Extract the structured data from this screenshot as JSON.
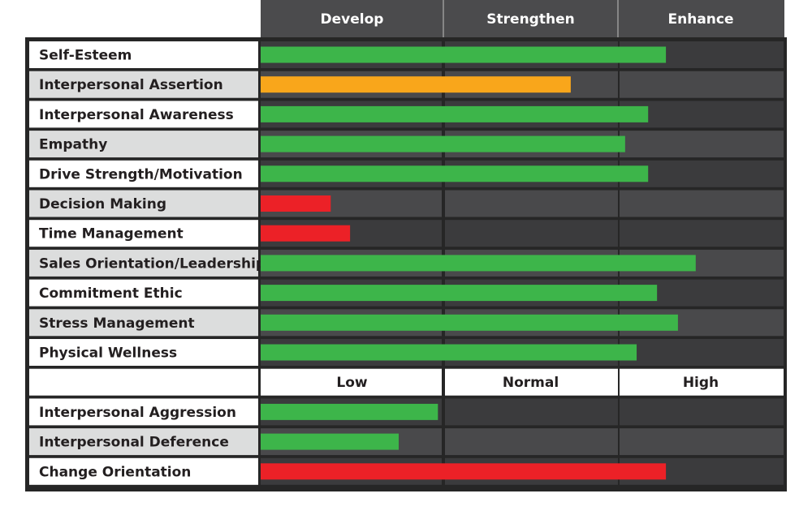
{
  "chart_data": [
    {
      "type": "bar",
      "headers": [
        "Develop",
        "Strengthen",
        "Enhance"
      ],
      "categories": [
        "Self-Esteem",
        "Interpersonal Assertion",
        "Interpersonal Awareness",
        "Empathy",
        "Drive Strength/Motivation",
        "Decision Making",
        "Time Management",
        "Sales Orientation/Leadership",
        "Commitment Ethic",
        "Stress Management",
        "Physical Wellness"
      ],
      "values": [
        77.5,
        59.3,
        74.1,
        69.7,
        74.1,
        13.4,
        17.1,
        83.2,
        75.8,
        79.8,
        71.9
      ],
      "colors": [
        "#3db54a",
        "#f9a61b",
        "#3db54a",
        "#3db54a",
        "#3db54a",
        "#ec2127",
        "#ec2127",
        "#3db54a",
        "#3db54a",
        "#3db54a",
        "#3db54a"
      ],
      "xlim": [
        0,
        100
      ]
    },
    {
      "type": "bar",
      "headers": [
        "Low",
        "Normal",
        "High"
      ],
      "categories": [
        "Interpersonal Aggression",
        "Interpersonal Deference",
        "Change Orientation"
      ],
      "values": [
        33.9,
        26.4,
        77.5
      ],
      "colors": [
        "#3db54a",
        "#3db54a",
        "#ec2127"
      ],
      "xlim": [
        0,
        100
      ]
    }
  ]
}
